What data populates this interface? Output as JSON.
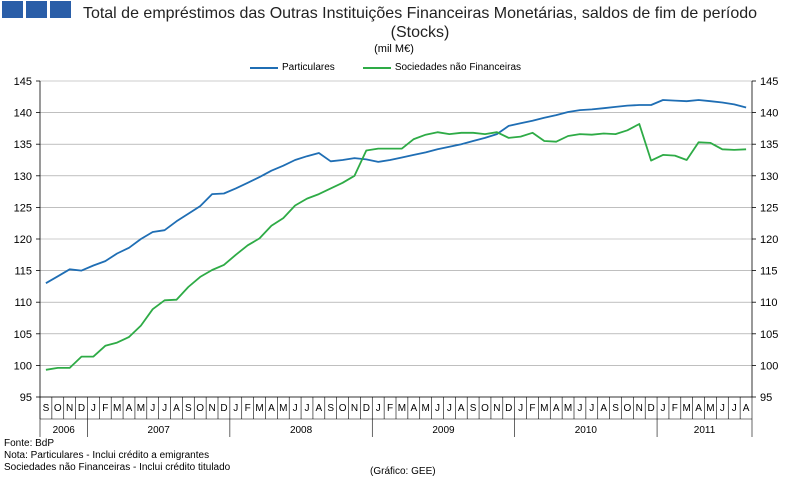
{
  "logo": {
    "color": "#2a5ea8"
  },
  "chart_data": {
    "type": "line",
    "title": "Total de empréstimos das Outras Instituições Financeiras Monetárias, saldos de fim de período (Stocks)",
    "unit": "(mil M€)",
    "ylim": [
      95,
      145
    ],
    "yticks": [
      95,
      100,
      105,
      110,
      115,
      120,
      125,
      130,
      135,
      140,
      145
    ],
    "grid": true,
    "legend_position": "top-center",
    "months": [
      "S",
      "O",
      "N",
      "D",
      "J",
      "F",
      "M",
      "A",
      "M",
      "J",
      "J",
      "A",
      "S",
      "O",
      "N",
      "D",
      "J",
      "F",
      "M",
      "A",
      "M",
      "J",
      "J",
      "A",
      "S",
      "O",
      "N",
      "D",
      "J",
      "F",
      "M",
      "A",
      "M",
      "J",
      "J",
      "A",
      "S",
      "O",
      "N",
      "D",
      "J",
      "F",
      "M",
      "A",
      "M",
      "J",
      "J",
      "A",
      "S",
      "O",
      "N",
      "D",
      "J",
      "F",
      "M",
      "A",
      "M",
      "J",
      "J",
      "A"
    ],
    "years": [
      {
        "label": "2006",
        "start": 0,
        "count": 4
      },
      {
        "label": "2007",
        "start": 4,
        "count": 12
      },
      {
        "label": "2008",
        "start": 16,
        "count": 12
      },
      {
        "label": "2009",
        "start": 28,
        "count": 12
      },
      {
        "label": "2010",
        "start": 40,
        "count": 12
      },
      {
        "label": "2011",
        "start": 52,
        "count": 8
      }
    ],
    "series": [
      {
        "name": "Particulares",
        "color": "#1f6eb4",
        "values": [
          113.0,
          114.1,
          115.2,
          115.0,
          115.8,
          116.5,
          117.7,
          118.6,
          120.0,
          121.1,
          121.4,
          122.8,
          124.0,
          125.2,
          127.1,
          127.2,
          128.0,
          128.9,
          129.8,
          130.8,
          131.6,
          132.5,
          133.1,
          133.6,
          132.3,
          132.5,
          132.8,
          132.6,
          132.2,
          132.5,
          132.9,
          133.3,
          133.7,
          134.2,
          134.6,
          135.0,
          135.5,
          136.0,
          136.6,
          137.9,
          138.3,
          138.7,
          139.2,
          139.6,
          140.1,
          140.4,
          140.5,
          140.7,
          140.9,
          141.1,
          141.2,
          141.2,
          142.0,
          141.9,
          141.8,
          142.0,
          141.8,
          141.6,
          141.3,
          140.8
        ]
      },
      {
        "name": "Sociedades não Financeiras",
        "color": "#2eab46",
        "values": [
          99.3,
          99.6,
          99.6,
          101.4,
          101.4,
          103.1,
          103.6,
          104.5,
          106.3,
          108.9,
          110.3,
          110.4,
          112.4,
          114.0,
          115.1,
          115.9,
          117.5,
          119.0,
          120.1,
          122.1,
          123.3,
          125.3,
          126.4,
          127.1,
          128.0,
          128.9,
          130.0,
          134.0,
          134.3,
          134.3,
          134.3,
          135.8,
          136.5,
          136.9,
          136.6,
          136.8,
          136.8,
          136.6,
          136.9,
          136.0,
          136.2,
          136.8,
          135.5,
          135.4,
          136.3,
          136.6,
          136.5,
          136.7,
          136.6,
          137.2,
          138.2,
          132.4,
          133.3,
          133.2,
          132.5,
          135.3,
          135.2,
          134.2,
          134.1,
          134.2
        ]
      }
    ]
  },
  "notes": {
    "source": "Fonte: BdP",
    "note1": "Nota: Particulares - Inclui crédito a emigrantes",
    "note2": "Sociedades não Financeiras - Inclui crédito titulado",
    "credit": "(Gráfico: GEE)"
  }
}
